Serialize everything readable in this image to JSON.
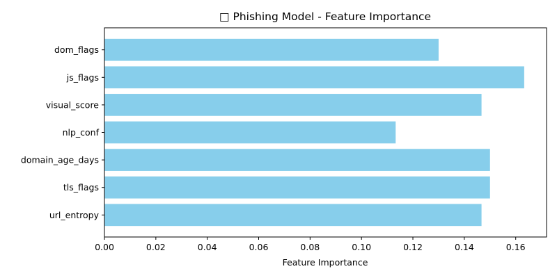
{
  "chart_data": {
    "type": "bar",
    "orientation": "horizontal",
    "title": "□ Phishing Model - Feature Importance",
    "xlabel": "Feature Importance",
    "ylabel": "",
    "categories": [
      "url_entropy",
      "tls_flags",
      "domain_age_days",
      "nlp_conf",
      "visual_score",
      "js_flags",
      "dom_flags"
    ],
    "values": [
      0.1467,
      0.15,
      0.15,
      0.1133,
      0.1467,
      0.1633,
      0.13
    ],
    "xlim": [
      0,
      0.172
    ],
    "xticks": [
      "0.00",
      "0.02",
      "0.04",
      "0.06",
      "0.08",
      "0.10",
      "0.12",
      "0.14",
      "0.16"
    ],
    "bar_color": "#87ceeb",
    "grid": false,
    "legend": "none"
  }
}
